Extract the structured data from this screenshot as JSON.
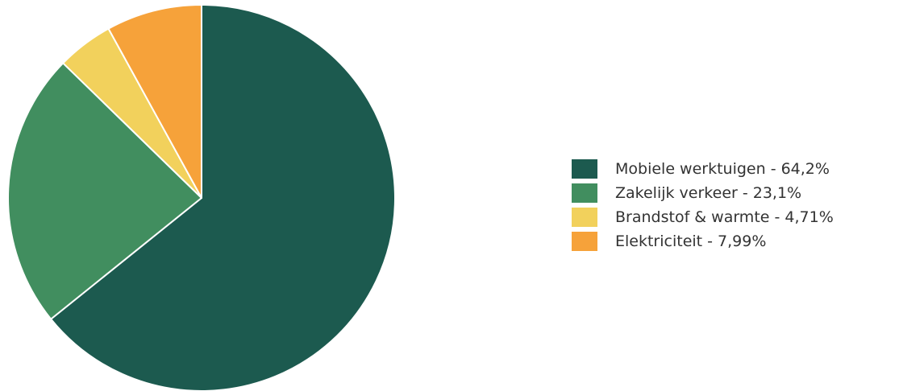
{
  "chart_data": {
    "type": "pie",
    "title": "",
    "categories": [
      "Mobiele werktuigen",
      "Zakelijk verkeer",
      "Brandstof & warmte",
      "Elektriciteit"
    ],
    "values": [
      64.2,
      23.1,
      4.71,
      7.99
    ],
    "labels": [
      "Mobiele werktuigen - 64,2%",
      "Zakelijk verkeer - 23,1%",
      "Brandstof & warmte - 4,71%",
      "Elektriciteit - 7,99%"
    ],
    "colors": [
      "#1c5a4f",
      "#418e5f",
      "#f2d15c",
      "#f6a23a"
    ],
    "legend_position": "right",
    "start_angle": "top",
    "direction": "clockwise"
  }
}
